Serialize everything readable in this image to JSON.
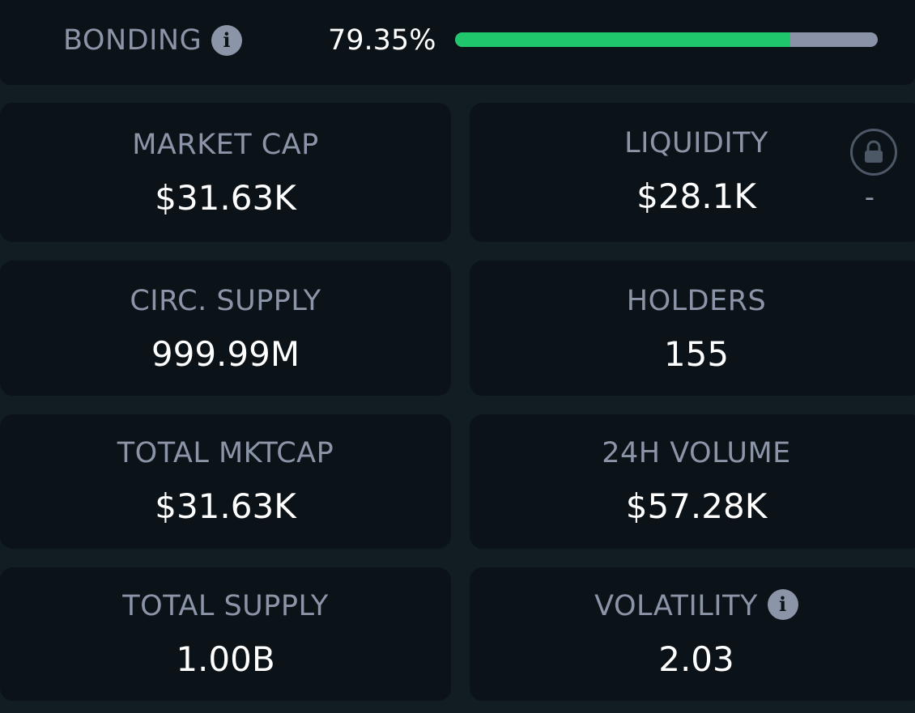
{
  "bonding": {
    "label": "BONDING",
    "percent_text": "79.35%",
    "progress": 0.7935,
    "info_icon": "info-icon"
  },
  "stats": {
    "market_cap": {
      "label": "MARKET CAP",
      "value": "$31.63K"
    },
    "liquidity": {
      "label": "LIQUIDITY",
      "value": "$28.1K",
      "lock_status": "-",
      "icon": "lock-icon"
    },
    "circ_supply": {
      "label": "CIRC. SUPPLY",
      "value": "999.99M"
    },
    "holders": {
      "label": "HOLDERS",
      "value": "155"
    },
    "total_mktcap": {
      "label": "TOTAL MKTCAP",
      "value": "$31.63K"
    },
    "volume_24h": {
      "label": "24H VOLUME",
      "value": "$57.28K"
    },
    "total_supply": {
      "label": "TOTAL SUPPLY",
      "value": "1.00B"
    },
    "volatility": {
      "label": "VOLATILITY",
      "value": "2.03",
      "info_icon": "info-icon"
    }
  },
  "colors": {
    "background": "#111c23",
    "card": "#0b1218",
    "label": "#8b95a7",
    "value": "#ffffff",
    "progress_fill": "#1fc66c",
    "progress_track": "#8992a6"
  }
}
